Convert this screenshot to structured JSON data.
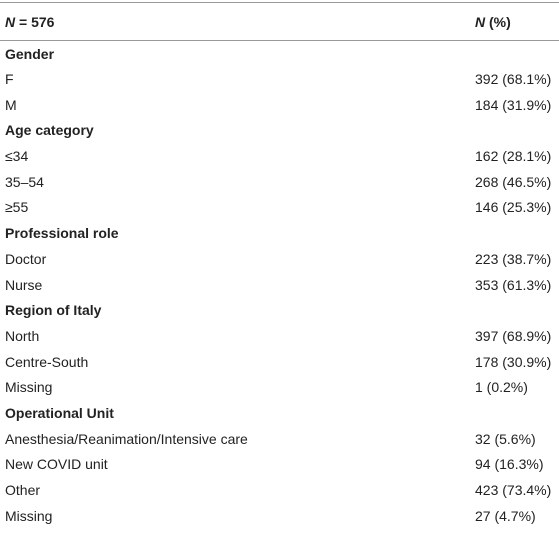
{
  "header": {
    "col1": {
      "italic": "N",
      "rest": " = 576"
    },
    "col2": {
      "italic": "N",
      "rest": " (%)"
    }
  },
  "sections": [
    {
      "title": "Gender",
      "rows": [
        [
          "F",
          "392 (68.1%)"
        ],
        [
          "M",
          "184 (31.9%)"
        ]
      ]
    },
    {
      "title": "Age category",
      "rows": [
        [
          "≤34",
          "162 (28.1%)"
        ],
        [
          "35–54",
          "268 (46.5%)"
        ],
        [
          "≥55",
          "146 (25.3%)"
        ]
      ]
    },
    {
      "title": "Professional role",
      "rows": [
        [
          "Doctor",
          "223 (38.7%)"
        ],
        [
          "Nurse",
          "353 (61.3%)"
        ]
      ]
    },
    {
      "title": "Region of Italy",
      "rows": [
        [
          "North",
          "397 (68.9%)"
        ],
        [
          "Centre-South",
          "178 (30.9%)"
        ],
        [
          "Missing",
          "1 (0.2%)"
        ]
      ]
    },
    {
      "title": "Operational Unit",
      "rows": [
        [
          "Anesthesia/Reanimation/Intensive care",
          "32 (5.6%)"
        ],
        [
          "New COVID unit",
          "94 (16.3%)"
        ],
        [
          "Other",
          "423 (73.4%)"
        ],
        [
          "Missing",
          "27 (4.7%)"
        ]
      ]
    }
  ]
}
